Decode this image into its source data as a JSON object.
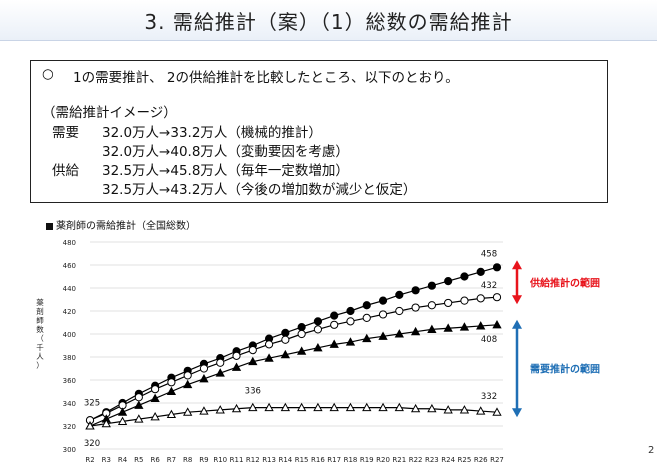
{
  "page": {
    "title": "3. 需給推計（案）（1）総数の需給推計",
    "corner_mark": "2"
  },
  "summary": {
    "bullet": "○",
    "line1": "1の需要推計、 2の供給推計を比較したところ、以下のとおり。",
    "heading": "（需給推計イメージ）",
    "demand_label": "需要",
    "demand_1": "32.0万人→33.2万人（機械的推計）",
    "demand_2": "32.0万人→40.8万人（変動要因を考慮）",
    "supply_label": "供給",
    "supply_1": "32.5万人→45.8万人（毎年一定数増加）",
    "supply_2": "32.5万人→43.2万人（今後の増加数が減少と仮定）"
  },
  "chart_data": {
    "type": "line",
    "title": "薬剤師の需給推計（全国総数）",
    "ylabel": "薬剤師数（千人）",
    "ylim": [
      300,
      480
    ],
    "yticks": [
      300,
      320,
      340,
      360,
      380,
      400,
      420,
      440,
      460,
      480
    ],
    "categories": [
      "R2",
      "R3",
      "R4",
      "R5",
      "R6",
      "R7",
      "R8",
      "R9",
      "R10",
      "R11",
      "R12",
      "R13",
      "R14",
      "R15",
      "R16",
      "R17",
      "R18",
      "R19",
      "R20",
      "R21",
      "R22",
      "R23",
      "R24",
      "R25",
      "R26",
      "R27"
    ],
    "series": [
      {
        "marker": "filled-circle",
        "color": "#000000",
        "values": [
          325,
          332,
          340,
          348,
          355,
          362,
          368,
          374,
          379,
          385,
          390,
          396,
          401,
          406,
          411,
          416,
          420,
          425,
          429,
          434,
          438,
          442,
          446,
          450,
          454,
          458
        ]
      },
      {
        "marker": "open-circle",
        "color": "#000000",
        "values": [
          325,
          331,
          338,
          345,
          352,
          358,
          364,
          370,
          375,
          381,
          386,
          391,
          395,
          400,
          404,
          408,
          411,
          414,
          417,
          420,
          423,
          425,
          427,
          429,
          431,
          432
        ]
      },
      {
        "marker": "filled-triangle",
        "color": "#000000",
        "values": [
          320,
          326,
          332,
          338,
          344,
          350,
          356,
          361,
          366,
          371,
          376,
          379,
          382,
          385,
          388,
          391,
          393,
          396,
          398,
          400,
          402,
          404,
          405,
          406,
          407,
          408
        ]
      },
      {
        "marker": "open-triangle",
        "color": "#000000",
        "values": [
          320,
          322,
          324,
          326,
          328,
          330,
          332,
          333,
          334,
          335,
          336,
          336,
          336,
          336,
          336,
          336,
          336,
          336,
          336,
          336,
          335,
          335,
          334,
          334,
          333,
          332
        ]
      }
    ],
    "data_labels": [
      {
        "text": "458",
        "series": 0,
        "index": 25
      },
      {
        "text": "432",
        "series": 1,
        "index": 25
      },
      {
        "text": "408",
        "series": 2,
        "index": 25
      },
      {
        "text": "336",
        "series": 3,
        "index": 10
      },
      {
        "text": "332",
        "series": 3,
        "index": 25
      },
      {
        "text": "325",
        "series": 0,
        "index": 0
      },
      {
        "text": "320",
        "series": 2,
        "index": 0
      }
    ],
    "annotations": [
      {
        "text": "供給推計の範囲",
        "color": "#e8141c",
        "range": [
          432,
          458
        ]
      },
      {
        "text": "需要推計の範囲",
        "color": "#1f6fb5",
        "range": [
          332,
          408
        ]
      }
    ]
  }
}
